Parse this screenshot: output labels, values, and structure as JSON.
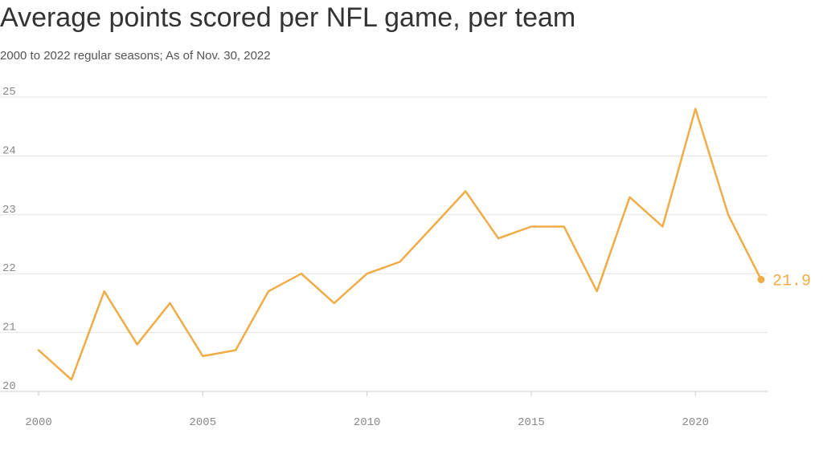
{
  "colors": {
    "line": "#f0ac47",
    "grid": "#e3e3e3",
    "axis": "#cccccc"
  },
  "chart_data": {
    "type": "line",
    "title": "Average points scored per NFL game, per team",
    "subtitle": "2000 to 2022 regular seasons; As of Nov. 30, 2022",
    "xlabel": "",
    "ylabel": "",
    "xlim": [
      2000,
      2022
    ],
    "ylim": [
      20,
      25
    ],
    "x_ticks": [
      2000,
      2005,
      2010,
      2015,
      2020
    ],
    "y_ticks": [
      20,
      21,
      22,
      23,
      24,
      25
    ],
    "grid": true,
    "legend": "none",
    "end_label": "21.9",
    "series": [
      {
        "x": [
          2000,
          2001,
          2002,
          2003,
          2004,
          2005,
          2006,
          2007,
          2008,
          2009,
          2010,
          2011,
          2012,
          2013,
          2014,
          2015,
          2016,
          2017,
          2018,
          2019,
          2020,
          2021,
          2022
        ],
        "values": [
          20.7,
          20.2,
          21.7,
          20.8,
          21.5,
          20.6,
          20.7,
          21.7,
          22.0,
          21.5,
          22.0,
          22.2,
          22.8,
          23.4,
          22.6,
          22.8,
          22.8,
          21.7,
          23.3,
          22.8,
          24.8,
          23.0,
          21.9
        ]
      }
    ]
  }
}
